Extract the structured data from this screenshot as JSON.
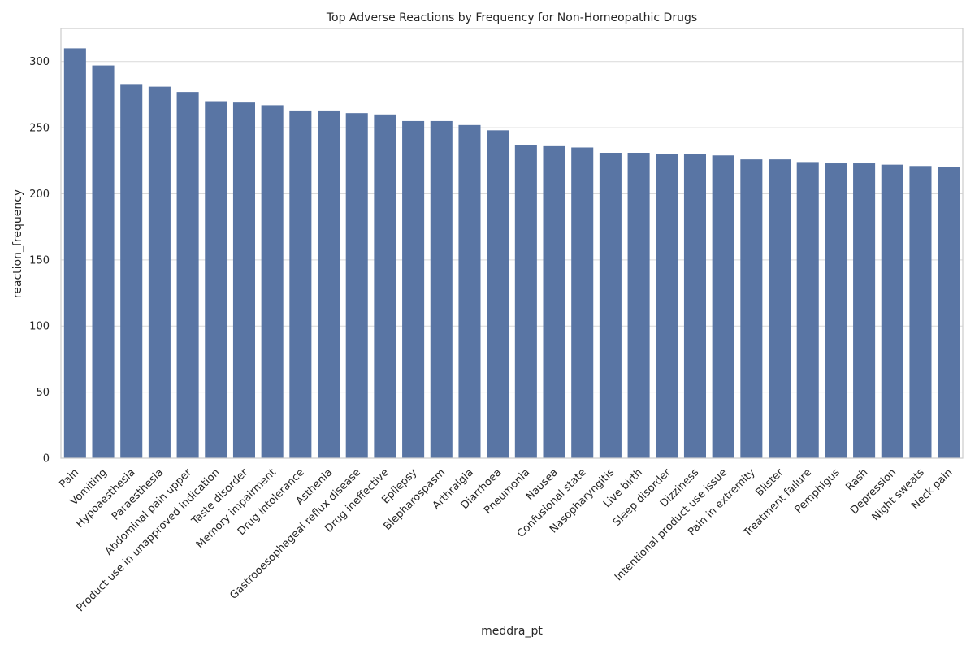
{
  "chart_data": {
    "type": "bar",
    "title": "Top Adverse Reactions by Frequency for Non-Homeopathic Drugs",
    "xlabel": "meddra_pt",
    "ylabel": "reaction_frequency",
    "ylim": [
      0,
      325
    ],
    "yticks": [
      0,
      50,
      100,
      150,
      200,
      250,
      300
    ],
    "grid": "horizontal",
    "bar_color": "#5975a4",
    "categories": [
      "Pain",
      "Vomiting",
      "Hypoaesthesia",
      "Paraesthesia",
      "Abdominal pain upper",
      "Product use in unapproved indication",
      "Taste disorder",
      "Memory impairment",
      "Drug intolerance",
      "Asthenia",
      "Gastrooesophageal reflux disease",
      "Drug ineffective",
      "Epilepsy",
      "Blepharospasm",
      "Arthralgia",
      "Diarrhoea",
      "Pneumonia",
      "Nausea",
      "Confusional state",
      "Nasopharyngitis",
      "Live birth",
      "Sleep disorder",
      "Dizziness",
      "Intentional product use issue",
      "Pain in extremity",
      "Blister",
      "Treatment failure",
      "Pemphigus",
      "Rash",
      "Depression",
      "Night sweats",
      "Neck pain"
    ],
    "values": [
      310,
      297,
      283,
      281,
      277,
      270,
      269,
      267,
      263,
      263,
      261,
      260,
      255,
      255,
      252,
      248,
      237,
      236,
      235,
      231,
      231,
      230,
      230,
      229,
      226,
      226,
      224,
      223,
      223,
      222,
      221,
      220
    ]
  }
}
